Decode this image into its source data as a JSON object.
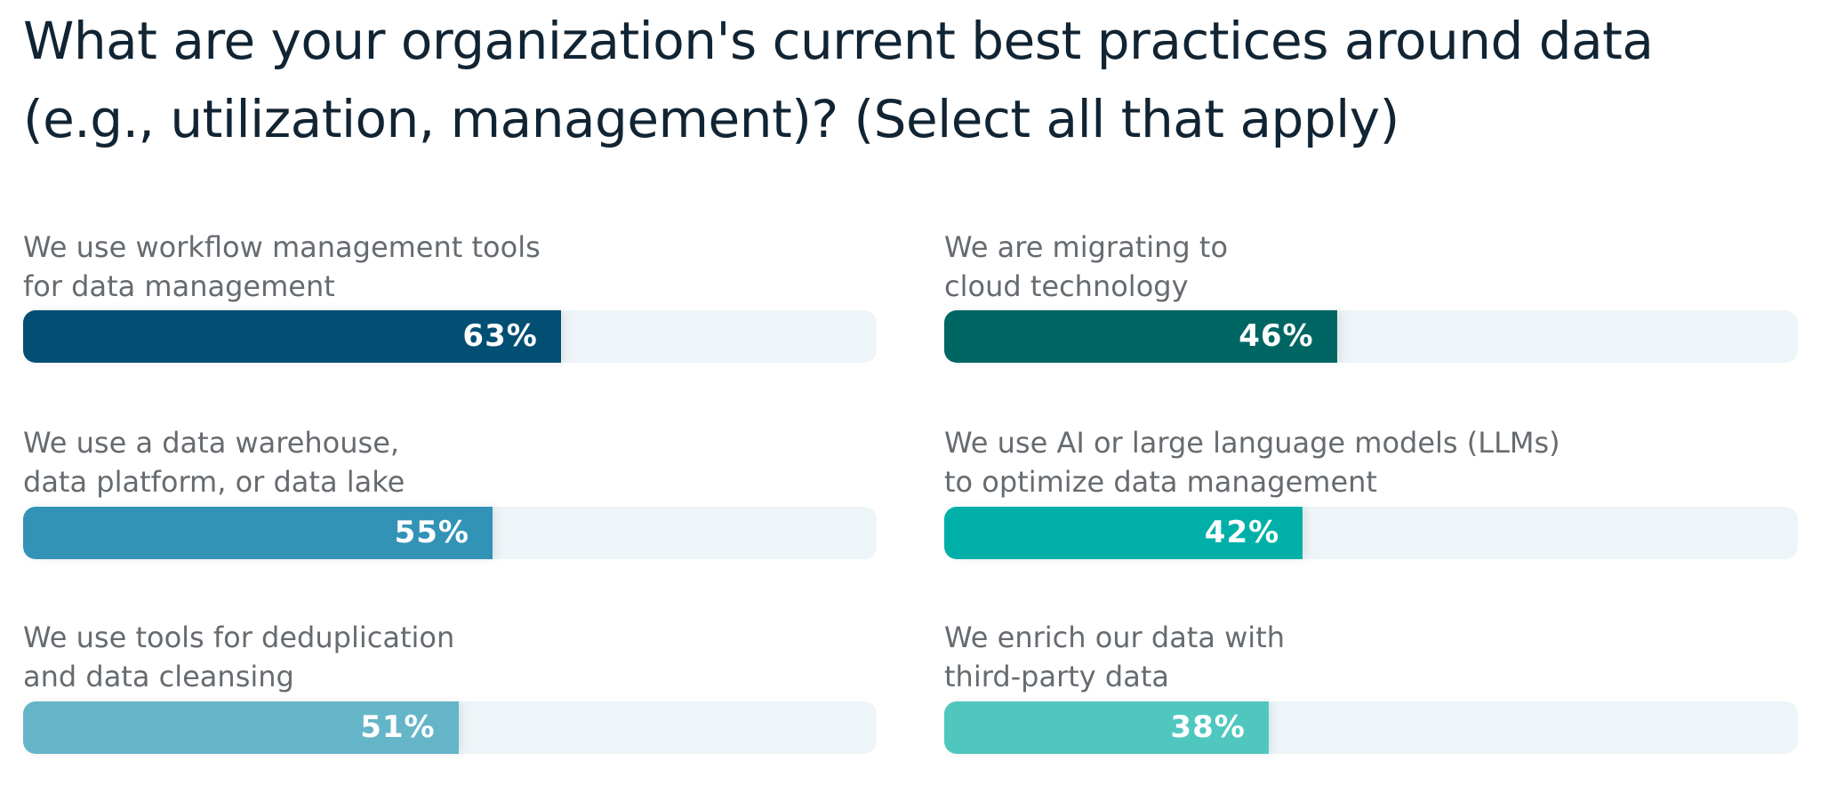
{
  "chart_data": {
    "type": "bar",
    "title": "What are your organization's current best practices around data\n(e.g., utilization, management)? (Select all that apply)",
    "categories": [
      "We use workflow management tools\nfor data management",
      "We use a data warehouse,\ndata platform, or data lake",
      "We use tools for deduplication\nand data cleansing",
      "We are migrating to\ncloud technology",
      "We use AI or large language models (LLMs)\nto optimize data management",
      "We enrich our data with\nthird-party data"
    ],
    "values": [
      63,
      55,
      51,
      46,
      42,
      38
    ],
    "value_labels": [
      "63%",
      "55%",
      "51%",
      "46%",
      "42%",
      "38%"
    ],
    "colors": [
      "#034f73",
      "#3393b6",
      "#65b5c8",
      "#006664",
      "#00b0a8",
      "#4fc7bf"
    ],
    "xlim": [
      0,
      100
    ]
  }
}
